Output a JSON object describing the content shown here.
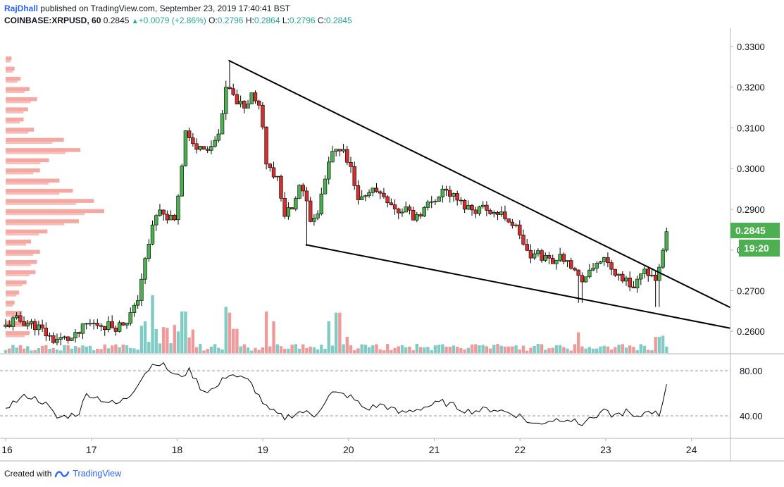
{
  "header": {
    "author": "RajDhall",
    "published_text": "published on TradingView.com, September 23, 2019 17:40:41 BST",
    "symbol": "COINBASE:XRPUSD, 60",
    "last": "0.2845",
    "change": "+0.0079 (+2.86%)",
    "o_label": "O:",
    "o_value": "0.2796",
    "h_label": "H:",
    "h_value": "0.2864",
    "l_label": "L:",
    "l_value": "0.2796",
    "c_label": "C:",
    "c_value": "0.2845"
  },
  "price_axis": {
    "labels": [
      "0.3300",
      "0.3200",
      "0.3100",
      "0.3000",
      "0.2900",
      "0.2800",
      "0.2700",
      "0.2600"
    ],
    "last_price_badge": "0.2845",
    "countdown_badge": "19:20"
  },
  "rsi_axis": {
    "labels": [
      "80.00",
      "40.00"
    ]
  },
  "time_axis": {
    "labels": [
      "16",
      "17",
      "18",
      "19",
      "20",
      "21",
      "22",
      "23",
      "24"
    ]
  },
  "footer": {
    "created_with": "Created with",
    "brand": "TradingView"
  },
  "colors": {
    "up": "#26a69a",
    "candle_up": "#4caf50",
    "candle_down": "#d32f2f",
    "vol_up": "#80cbc4",
    "vol_down": "#ef9a9a",
    "vp": "#f28b82",
    "badge": "#4caf50",
    "line": "#000000"
  },
  "chart_data": {
    "type": "candlestick",
    "symbol": "COINBASE:XRPUSD",
    "interval": "60",
    "x_range": [
      "2019-09-16",
      "2019-09-24"
    ],
    "y_range": [
      0.2545,
      0.3345
    ],
    "rsi_range": [
      20,
      95
    ],
    "x_tick_labels": [
      "16",
      "17",
      "18",
      "19",
      "20",
      "21",
      "22",
      "23",
      "24"
    ],
    "y_tick_values": [
      0.33,
      0.32,
      0.31,
      0.3,
      0.29,
      0.28,
      0.27,
      0.26
    ],
    "rsi_levels": [
      80,
      40
    ],
    "last_price": 0.2845,
    "anchors": [
      {
        "t": 0.0,
        "p": 0.2612
      },
      {
        "t": 0.1,
        "p": 0.2628
      },
      {
        "t": 0.2,
        "p": 0.2625
      },
      {
        "t": 0.35,
        "p": 0.2615
      },
      {
        "t": 0.55,
        "p": 0.258
      },
      {
        "t": 0.8,
        "p": 0.2582
      },
      {
        "t": 0.95,
        "p": 0.2618
      },
      {
        "t": 1.1,
        "p": 0.2618
      },
      {
        "t": 1.3,
        "p": 0.2612
      },
      {
        "t": 1.4,
        "p": 0.2625
      },
      {
        "t": 1.52,
        "p": 0.266
      },
      {
        "t": 1.62,
        "p": 0.277
      },
      {
        "t": 1.72,
        "p": 0.288
      },
      {
        "t": 1.82,
        "p": 0.29
      },
      {
        "t": 1.98,
        "p": 0.286
      },
      {
        "t": 2.1,
        "p": 0.31
      },
      {
        "t": 2.2,
        "p": 0.305
      },
      {
        "t": 2.32,
        "p": 0.305
      },
      {
        "t": 2.47,
        "p": 0.306
      },
      {
        "t": 2.58,
        "p": 0.32
      },
      {
        "t": 2.7,
        "p": 0.3165
      },
      {
        "t": 2.8,
        "p": 0.315
      },
      {
        "t": 2.88,
        "p": 0.319
      },
      {
        "t": 2.98,
        "p": 0.313
      },
      {
        "t": 3.05,
        "p": 0.3
      },
      {
        "t": 3.15,
        "p": 0.299
      },
      {
        "t": 3.25,
        "p": 0.2895
      },
      {
        "t": 3.35,
        "p": 0.29
      },
      {
        "t": 3.42,
        "p": 0.296
      },
      {
        "t": 3.5,
        "p": 0.292
      },
      {
        "t": 3.55,
        "p": 0.288
      },
      {
        "t": 3.65,
        "p": 0.29
      },
      {
        "t": 3.72,
        "p": 0.296
      },
      {
        "t": 3.8,
        "p": 0.304
      },
      {
        "t": 3.92,
        "p": 0.3045
      },
      {
        "t": 4.02,
        "p": 0.3
      },
      {
        "t": 4.12,
        "p": 0.291
      },
      {
        "t": 4.22,
        "p": 0.295
      },
      {
        "t": 4.32,
        "p": 0.2945
      },
      {
        "t": 4.45,
        "p": 0.293
      },
      {
        "t": 4.58,
        "p": 0.289
      },
      {
        "t": 4.68,
        "p": 0.2905
      },
      {
        "t": 4.75,
        "p": 0.288
      },
      {
        "t": 4.85,
        "p": 0.2895
      },
      {
        "t": 5.0,
        "p": 0.2925
      },
      {
        "t": 5.1,
        "p": 0.295
      },
      {
        "t": 5.2,
        "p": 0.2935
      },
      {
        "t": 5.3,
        "p": 0.2915
      },
      {
        "t": 5.45,
        "p": 0.29
      },
      {
        "t": 5.6,
        "p": 0.2905
      },
      {
        "t": 5.72,
        "p": 0.289
      },
      {
        "t": 5.85,
        "p": 0.288
      },
      {
        "t": 6.0,
        "p": 0.284
      },
      {
        "t": 6.1,
        "p": 0.278
      },
      {
        "t": 6.2,
        "p": 0.279
      },
      {
        "t": 6.35,
        "p": 0.2775
      },
      {
        "t": 6.55,
        "p": 0.2785
      },
      {
        "t": 6.68,
        "p": 0.273
      },
      {
        "t": 6.8,
        "p": 0.2735
      },
      {
        "t": 6.92,
        "p": 0.278
      },
      {
        "t": 7.08,
        "p": 0.275
      },
      {
        "t": 7.2,
        "p": 0.273
      },
      {
        "t": 7.3,
        "p": 0.271
      },
      {
        "t": 7.4,
        "p": 0.2735
      },
      {
        "t": 7.5,
        "p": 0.275
      },
      {
        "t": 7.6,
        "p": 0.273
      },
      {
        "t": 7.64,
        "p": 0.276
      },
      {
        "t": 7.68,
        "p": 0.28
      },
      {
        "t": 7.71,
        "p": 0.2845
      }
    ],
    "spikes": [
      {
        "t": 2.6,
        "high": 0.3265
      },
      {
        "t": 3.5,
        "low": 0.281
      },
      {
        "t": 6.7,
        "low": 0.267
      },
      {
        "t": 7.6,
        "low": 0.266
      }
    ],
    "volume_spikes": [
      {
        "t": 1.72,
        "v": 1.0
      },
      {
        "t": 1.62,
        "v": 0.55
      },
      {
        "t": 2.08,
        "v": 0.72
      },
      {
        "t": 2.58,
        "v": 0.8
      },
      {
        "t": 2.62,
        "v": 0.7
      },
      {
        "t": 3.05,
        "v": 0.72
      },
      {
        "t": 3.12,
        "v": 0.55
      },
      {
        "t": 3.78,
        "v": 0.55
      },
      {
        "t": 3.88,
        "v": 0.7
      },
      {
        "t": 4.0,
        "v": 0.28
      },
      {
        "t": 6.68,
        "v": 0.36
      },
      {
        "t": 7.6,
        "v": 0.28
      },
      {
        "t": 7.68,
        "v": 0.3
      },
      {
        "t": 2.68,
        "v": 0.42
      }
    ],
    "rsi_anchors": [
      {
        "t": 0.0,
        "r": 48
      },
      {
        "t": 0.25,
        "r": 58
      },
      {
        "t": 0.45,
        "r": 52
      },
      {
        "t": 0.6,
        "r": 38
      },
      {
        "t": 0.85,
        "r": 42
      },
      {
        "t": 0.95,
        "r": 60
      },
      {
        "t": 1.2,
        "r": 52
      },
      {
        "t": 1.3,
        "r": 50
      },
      {
        "t": 1.45,
        "r": 58
      },
      {
        "t": 1.6,
        "r": 76
      },
      {
        "t": 1.75,
        "r": 88
      },
      {
        "t": 1.85,
        "r": 84
      },
      {
        "t": 2.0,
        "r": 74
      },
      {
        "t": 2.15,
        "r": 80
      },
      {
        "t": 2.3,
        "r": 62
      },
      {
        "t": 2.45,
        "r": 64
      },
      {
        "t": 2.6,
        "r": 78
      },
      {
        "t": 2.85,
        "r": 70
      },
      {
        "t": 3.05,
        "r": 46
      },
      {
        "t": 3.25,
        "r": 38
      },
      {
        "t": 3.45,
        "r": 44
      },
      {
        "t": 3.6,
        "r": 40
      },
      {
        "t": 3.8,
        "r": 60
      },
      {
        "t": 4.0,
        "r": 58
      },
      {
        "t": 4.2,
        "r": 46
      },
      {
        "t": 4.4,
        "r": 50
      },
      {
        "t": 4.6,
        "r": 42
      },
      {
        "t": 4.8,
        "r": 46
      },
      {
        "t": 5.1,
        "r": 52
      },
      {
        "t": 5.4,
        "r": 44
      },
      {
        "t": 5.7,
        "r": 46
      },
      {
        "t": 6.0,
        "r": 40
      },
      {
        "t": 6.15,
        "r": 32
      },
      {
        "t": 6.35,
        "r": 36
      },
      {
        "t": 6.55,
        "r": 38
      },
      {
        "t": 6.7,
        "r": 32
      },
      {
        "t": 6.95,
        "r": 44
      },
      {
        "t": 7.1,
        "r": 40
      },
      {
        "t": 7.25,
        "r": 44
      },
      {
        "t": 7.35,
        "r": 36
      },
      {
        "t": 7.5,
        "r": 46
      },
      {
        "t": 7.62,
        "r": 40
      },
      {
        "t": 7.72,
        "r": 68
      }
    ],
    "volume_profile": [
      {
        "p": 0.3265,
        "w": 8
      },
      {
        "p": 0.324,
        "w": 12
      },
      {
        "p": 0.3215,
        "w": 20
      },
      {
        "p": 0.319,
        "w": 32
      },
      {
        "p": 0.3165,
        "w": 42
      },
      {
        "p": 0.314,
        "w": 30
      },
      {
        "p": 0.3115,
        "w": 24
      },
      {
        "p": 0.309,
        "w": 38
      },
      {
        "p": 0.3065,
        "w": 78
      },
      {
        "p": 0.304,
        "w": 100
      },
      {
        "p": 0.3015,
        "w": 58
      },
      {
        "p": 0.299,
        "w": 46
      },
      {
        "p": 0.2965,
        "w": 72
      },
      {
        "p": 0.294,
        "w": 90
      },
      {
        "p": 0.2915,
        "w": 118
      },
      {
        "p": 0.289,
        "w": 132
      },
      {
        "p": 0.2865,
        "w": 98
      },
      {
        "p": 0.284,
        "w": 56
      },
      {
        "p": 0.2815,
        "w": 34
      },
      {
        "p": 0.279,
        "w": 46
      },
      {
        "p": 0.2765,
        "w": 42
      },
      {
        "p": 0.274,
        "w": 40
      },
      {
        "p": 0.2715,
        "w": 28
      },
      {
        "p": 0.269,
        "w": 18
      },
      {
        "p": 0.2665,
        "w": 12
      },
      {
        "p": 0.264,
        "w": 22
      },
      {
        "p": 0.2615,
        "w": 40
      },
      {
        "p": 0.259,
        "w": 32
      }
    ],
    "trendlines": [
      {
        "name": "upper",
        "t1": 2.6,
        "p1": 0.3266,
        "t2": 8.45,
        "p2": 0.2659
      },
      {
        "name": "lower",
        "t1": 3.5,
        "p1": 0.2813,
        "t2": 8.45,
        "p2": 0.2608
      }
    ]
  }
}
